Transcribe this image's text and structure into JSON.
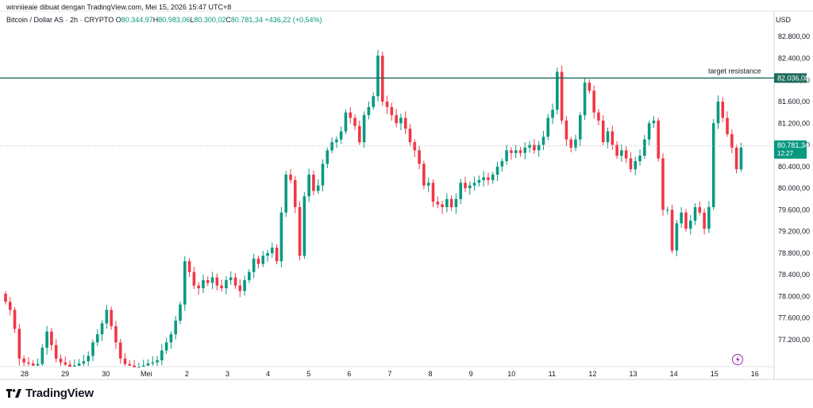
{
  "header": {
    "attribution": "winniieaie dibuat dengan TradingView.com, Mei 15, 2026 15:47 UTC+8",
    "symbol": "Bitcoin / Dollar AS · 2h · CRYPTO",
    "ohlc": [
      {
        "key": "O",
        "value": "80.344,97"
      },
      {
        "key": "H",
        "value": "80.983,06"
      },
      {
        "key": "L",
        "value": "80.300,02"
      },
      {
        "key": "C",
        "value": "80.781,34"
      }
    ],
    "change": "+436,22 (+0,54%)",
    "currency": "USD"
  },
  "footer": {
    "brand": "TradingView"
  },
  "colors": {
    "up": "#089981",
    "down": "#f23645",
    "line": "#1e6b5c",
    "text": "#131722",
    "grid": "#e8e8e8"
  },
  "chart_data": {
    "type": "candlestick",
    "title": "Bitcoin / Dollar AS · 2h · CRYPTO",
    "ylabel": "USD",
    "ylim": [
      76700,
      82950
    ],
    "grid": false,
    "y_ticks": [
      "82.800,00",
      "82.400,00",
      "82.000,00",
      "81.600,00",
      "81.200,00",
      "80.800,00",
      "80.400,00",
      "80.000,00",
      "79.600,00",
      "79.200,00",
      "78.800,00",
      "78.400,00",
      "78.000,00",
      "77.600,00",
      "77.200,00"
    ],
    "y_tick_values": [
      82800,
      82400,
      82000,
      81600,
      81200,
      80800,
      80400,
      80000,
      79600,
      79200,
      78800,
      78400,
      78000,
      77600,
      77200
    ],
    "x_ticks": [
      "28",
      "29",
      "30",
      "Mei",
      "2",
      "3",
      "4",
      "5",
      "6",
      "7",
      "8",
      "9",
      "10",
      "11",
      "12",
      "13",
      "14",
      "15",
      "16"
    ],
    "x_tick_days": [
      28,
      29,
      30,
      31,
      32,
      33,
      34,
      35,
      36,
      37,
      38,
      39,
      40,
      41,
      42,
      43,
      44,
      45,
      46
    ],
    "x_start_day": 27.53,
    "annotations": [
      {
        "type": "horizontal_line",
        "value": 82036.08,
        "label": "target resistance",
        "price_label": "82.036,08"
      }
    ],
    "last_price": {
      "value": 80781.34,
      "label": "80.781,34",
      "countdown": "12:27"
    },
    "candles_close": [
      77900,
      77750,
      77400,
      76850,
      76780,
      76760,
      76720,
      76750,
      77050,
      77350,
      77100,
      76850,
      76780,
      76740,
      76700,
      76720,
      76760,
      76800,
      76900,
      77150,
      77300,
      77500,
      77750,
      77450,
      77150,
      76850,
      76750,
      76720,
      76690,
      76700,
      76720,
      76760,
      76780,
      76820,
      77000,
      77150,
      77300,
      77550,
      77850,
      78650,
      78450,
      78200,
      78150,
      78300,
      78250,
      78350,
      78200,
      78150,
      78300,
      78350,
      78200,
      78100,
      78300,
      78450,
      78700,
      78600,
      78750,
      78800,
      78900,
      78650,
      79550,
      80250,
      80150,
      79650,
      78750,
      79850,
      80250,
      79950,
      80050,
      80450,
      80700,
      80850,
      80900,
      81050,
      81400,
      81300,
      81150,
      80850,
      81350,
      81500,
      81700,
      82450,
      81600,
      81500,
      81350,
      81200,
      81300,
      81100,
      80850,
      80700,
      80450,
      80050,
      80100,
      79750,
      79700,
      79650,
      79800,
      79650,
      79800,
      80100,
      80000,
      80050,
      80100,
      80150,
      80200,
      80150,
      80250,
      80400,
      80500,
      80700,
      80650,
      80700,
      80650,
      80750,
      80800,
      80700,
      80800,
      80950,
      81300,
      81450,
      82150,
      81250,
      80900,
      80750,
      80900,
      81350,
      81950,
      81800,
      81400,
      81250,
      80850,
      81050,
      80800,
      80600,
      80700,
      80550,
      80350,
      80500,
      80600,
      80900,
      81200,
      81250,
      80550,
      79600,
      79600,
      78850,
      79350,
      79550,
      79250,
      79400,
      79650,
      79550,
      79250,
      79650,
      81200,
      81600,
      81300,
      81000,
      80750,
      80350,
      80750
    ]
  }
}
